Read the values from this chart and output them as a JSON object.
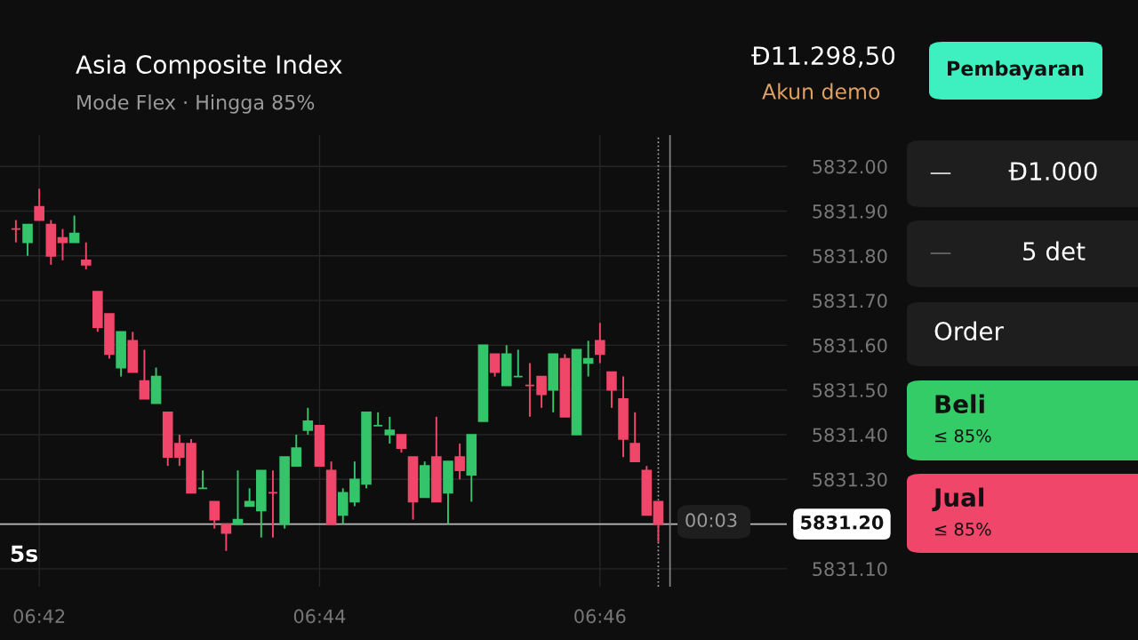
{
  "chart_data": {
    "type": "candlestick",
    "title": "Asia Composite Index",
    "subtitle": "Mode Flex · Hingga 85%",
    "x": [
      6.69722,
      6.69861,
      6.7,
      6.70139,
      6.70278,
      6.70417,
      6.70556,
      6.70694,
      6.70833,
      6.70972,
      6.71111,
      6.7125,
      6.71389,
      6.71528,
      6.71667,
      6.71806,
      6.71944,
      6.72083,
      6.72222,
      6.72361,
      6.725,
      6.72639,
      6.72778,
      6.72917,
      6.73056,
      6.73194,
      6.73333,
      6.73472,
      6.73611,
      6.7375,
      6.73889,
      6.74028,
      6.74167,
      6.74306,
      6.74444,
      6.74583,
      6.74722,
      6.74861,
      6.75,
      6.75139,
      6.75278,
      6.75417,
      6.75556,
      6.75694,
      6.75833,
      6.75972,
      6.76111,
      6.7625,
      6.76389,
      6.76528,
      6.76667,
      6.76806,
      6.76944,
      6.77083,
      6.77222,
      6.77361
    ],
    "ohlc": [
      [
        5831.86,
        5831.88,
        5831.83,
        5831.86
      ],
      [
        5831.83,
        5831.87,
        5831.8,
        5831.87
      ],
      [
        5831.91,
        5831.95,
        5831.88,
        5831.88
      ],
      [
        5831.87,
        5831.88,
        5831.78,
        5831.8
      ],
      [
        5831.84,
        5831.86,
        5831.79,
        5831.83
      ],
      [
        5831.83,
        5831.89,
        5831.83,
        5831.85
      ],
      [
        5831.79,
        5831.83,
        5831.77,
        5831.78
      ],
      [
        5831.72,
        5831.72,
        5831.63,
        5831.64
      ],
      [
        5831.67,
        5831.67,
        5831.57,
        5831.58
      ],
      [
        5831.55,
        5831.63,
        5831.53,
        5831.63
      ],
      [
        5831.61,
        5831.63,
        5831.54,
        5831.54
      ],
      [
        5831.52,
        5831.59,
        5831.48,
        5831.48
      ],
      [
        5831.47,
        5831.55,
        5831.47,
        5831.53
      ],
      [
        5831.45,
        5831.45,
        5831.33,
        5831.35
      ],
      [
        5831.38,
        5831.4,
        5831.33,
        5831.35
      ],
      [
        5831.38,
        5831.39,
        5831.27,
        5831.27
      ],
      [
        5831.28,
        5831.32,
        5831.28,
        5831.28
      ],
      [
        5831.25,
        5831.25,
        5831.19,
        5831.21
      ],
      [
        5831.2,
        5831.2,
        5831.14,
        5831.18
      ],
      [
        5831.2,
        5831.32,
        5831.2,
        5831.21
      ],
      [
        5831.24,
        5831.28,
        5831.24,
        5831.25
      ],
      [
        5831.23,
        5831.32,
        5831.17,
        5831.32
      ],
      [
        5831.27,
        5831.32,
        5831.17,
        5831.27
      ],
      [
        5831.2,
        5831.35,
        5831.19,
        5831.35
      ],
      [
        5831.33,
        5831.4,
        5831.33,
        5831.37
      ],
      [
        5831.41,
        5831.46,
        5831.4,
        5831.43
      ],
      [
        5831.42,
        5831.42,
        5831.33,
        5831.33
      ],
      [
        5831.32,
        5831.34,
        5831.2,
        5831.2
      ],
      [
        5831.22,
        5831.28,
        5831.2,
        5831.27
      ],
      [
        5831.25,
        5831.34,
        5831.24,
        5831.3
      ],
      [
        5831.29,
        5831.45,
        5831.28,
        5831.45
      ],
      [
        5831.42,
        5831.45,
        5831.42,
        5831.42
      ],
      [
        5831.4,
        5831.44,
        5831.38,
        5831.41
      ],
      [
        5831.4,
        5831.4,
        5831.36,
        5831.37
      ],
      [
        5831.35,
        5831.35,
        5831.21,
        5831.25
      ],
      [
        5831.26,
        5831.34,
        5831.26,
        5831.33
      ],
      [
        5831.35,
        5831.44,
        5831.25,
        5831.25
      ],
      [
        5831.27,
        5831.34,
        5831.2,
        5831.34
      ],
      [
        5831.35,
        5831.38,
        5831.3,
        5831.32
      ],
      [
        5831.31,
        5831.4,
        5831.25,
        5831.4
      ],
      [
        5831.43,
        5831.6,
        5831.43,
        5831.6
      ],
      [
        5831.58,
        5831.58,
        5831.53,
        5831.54
      ],
      [
        5831.51,
        5831.6,
        5831.51,
        5831.58
      ],
      [
        5831.53,
        5831.59,
        5831.53,
        5831.53
      ],
      [
        5831.51,
        5831.56,
        5831.44,
        5831.51
      ],
      [
        5831.53,
        5831.53,
        5831.46,
        5831.49
      ],
      [
        5831.5,
        5831.58,
        5831.45,
        5831.58
      ],
      [
        5831.57,
        5831.58,
        5831.44,
        5831.44
      ],
      [
        5831.4,
        5831.59,
        5831.4,
        5831.59
      ],
      [
        5831.56,
        5831.61,
        5831.53,
        5831.57
      ],
      [
        5831.61,
        5831.65,
        5831.56,
        5831.58
      ],
      [
        5831.54,
        5831.54,
        5831.46,
        5831.5
      ],
      [
        5831.48,
        5831.53,
        5831.35,
        5831.39
      ],
      [
        5831.38,
        5831.45,
        5831.34,
        5831.34
      ],
      [
        5831.32,
        5831.33,
        5831.22,
        5831.22
      ],
      [
        5831.25,
        5831.25,
        5831.16,
        5831.2
      ]
    ],
    "colors": [
      "#f0466a",
      "#34c46a",
      "#f0466a",
      "#f0466a",
      "#f0466a",
      "#34c46a",
      "#f0466a",
      "#f0466a",
      "#f0466a",
      "#34c46a",
      "#f0466a",
      "#f0466a",
      "#34c46a",
      "#f0466a",
      "#f0466a",
      "#f0466a",
      "#34c46a",
      "#f0466a",
      "#f0466a",
      "#34c46a",
      "#34c46a",
      "#34c46a",
      "#f0466a",
      "#34c46a",
      "#34c46a",
      "#34c46a",
      "#f0466a",
      "#f0466a",
      "#34c46a",
      "#34c46a",
      "#34c46a",
      "#34c46a",
      "#34c46a",
      "#f0466a",
      "#f0466a",
      "#34c46a",
      "#f0466a",
      "#34c46a",
      "#f0466a",
      "#34c46a",
      "#34c46a",
      "#f0466a",
      "#34c46a",
      "#34c46a",
      "#f0466a",
      "#f0466a",
      "#34c46a",
      "#f0466a",
      "#34c46a",
      "#34c46a",
      "#f0466a",
      "#f0466a",
      "#f0466a",
      "#f0466a",
      "#f0466a",
      "#f0466a"
    ],
    "xlim": [
      6.69533,
      6.78889
    ],
    "xticks": [
      {
        "value": 6.7,
        "label": "06:42"
      },
      {
        "value": 6.73333,
        "label": "06:44"
      },
      {
        "value": 6.76667,
        "label": "06:46"
      }
    ],
    "ylim": [
      5831.06,
      5832.07
    ],
    "yticks": [
      {
        "value": 5831.1,
        "label": "5831.10"
      },
      {
        "value": 5831.2,
        "label": null
      },
      {
        "value": 5831.3,
        "label": "5831.30"
      },
      {
        "value": 5831.4,
        "label": "5831.40"
      },
      {
        "value": 5831.5,
        "label": "5831.50"
      },
      {
        "value": 5831.6,
        "label": "5831.60"
      },
      {
        "value": 5831.7,
        "label": "5831.70"
      },
      {
        "value": 5831.8,
        "label": "5831.80"
      },
      {
        "value": 5831.9,
        "label": "5831.90"
      },
      {
        "value": 5832.0,
        "label": "5832.00"
      }
    ],
    "grid": true,
    "ref_lines": [
      {
        "axis": "y",
        "value": 5831.2,
        "label": "5831.20",
        "color": "#bbbbbb"
      },
      {
        "axis": "x",
        "value": 6.775,
        "color": "#888888"
      },
      {
        "axis": "x",
        "value": 6.77361,
        "color": "#aaaaaa",
        "line_style": "dotted"
      }
    ],
    "annotations": [
      "Đ11.298,50",
      "Akun demo",
      "Pembayaran",
      "Đ1.000",
      "5 det",
      "Order",
      "Beli",
      "≤ 85%",
      "Jual",
      "≤ 85%",
      "5s",
      "00:03",
      "—",
      "—"
    ]
  }
}
